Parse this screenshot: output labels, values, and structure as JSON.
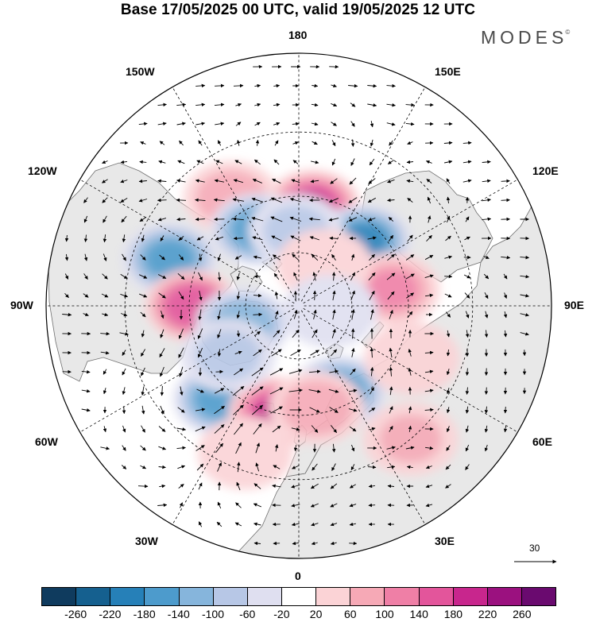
{
  "title": "Base 17/05/2025 00 UTC, valid 19/05/2025 12 UTC",
  "brand": "MODES",
  "brand_mark": "©",
  "longitude_labels": {
    "top": "180",
    "bottom": "0",
    "left": "90W",
    "right": "90E",
    "upper_left_1": "150W",
    "upper_left_2": "120W",
    "upper_right_1": "150E",
    "upper_right_2": "120E",
    "lower_left_1": "60W",
    "lower_left_2": "30W",
    "lower_right_1": "60E",
    "lower_right_2": "30E"
  },
  "reference_vector": "30",
  "colorbar": {
    "colors": [
      "#0f3b5e",
      "#15608f",
      "#2680b8",
      "#4d9bcc",
      "#86b5dc",
      "#b7c7e6",
      "#dfdff0",
      "#ffffff",
      "#fbd3d6",
      "#f6a9b6",
      "#ef7fa6",
      "#e3559b",
      "#c8268d",
      "#9b117f",
      "#6a0a6f"
    ],
    "ticks": [
      "-260",
      "-220",
      "-180",
      "-140",
      "-100",
      "-60",
      "-20",
      "20",
      "60",
      "100",
      "140",
      "180",
      "220",
      "260"
    ]
  },
  "anomaly_centers": [
    {
      "lon": 172,
      "lat": 53,
      "value": 185
    },
    {
      "lon": -148,
      "lat": 44,
      "value": 85
    },
    {
      "lon": -110,
      "lat": 41,
      "value": -155
    },
    {
      "lon": -152,
      "lat": 58,
      "value": -165
    },
    {
      "lon": -90,
      "lat": 51,
      "value": 175
    },
    {
      "lon": -72,
      "lat": 68,
      "value": -130
    },
    {
      "lon": -40,
      "lat": 46,
      "value": -165
    },
    {
      "lon": -12,
      "lat": 50,
      "value": 180
    },
    {
      "lon": 25,
      "lat": 55,
      "value": -165
    },
    {
      "lon": 10,
      "lat": 52,
      "value": 90
    },
    {
      "lon": 135,
      "lat": 56,
      "value": -185
    },
    {
      "lon": 100,
      "lat": 55,
      "value": 100
    },
    {
      "lon": 65,
      "lat": 45,
      "value": 55
    },
    {
      "lon": -178,
      "lat": 62,
      "value": -70
    },
    {
      "lon": 148,
      "lat": 72,
      "value": 50
    },
    {
      "lon": 80,
      "lat": 78,
      "value": -40
    },
    {
      "lon": -55,
      "lat": 58,
      "value": -70
    },
    {
      "lon": -20,
      "lat": 35,
      "value": 45
    },
    {
      "lon": 40,
      "lat": 30,
      "value": 60
    }
  ]
}
